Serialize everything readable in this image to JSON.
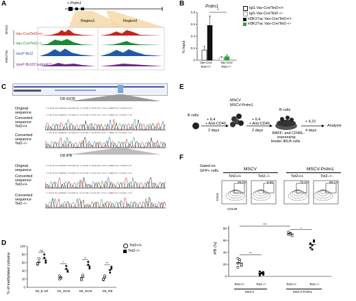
{
  "panels": {
    "A": "A",
    "B": "B",
    "C": "C",
    "D": "D",
    "E": "E",
    "F": "F"
  },
  "panelA": {
    "gene": "< Prdm1",
    "region1": "Region1",
    "region2": "Region2",
    "group1": "Bmi1C",
    "group2": "H3K27ac",
    "track_labels": [
      {
        "text": "Vav-Cre/Tet2+/+",
        "color": "#c8221c"
      },
      {
        "text": "Vav-Cre/Tet2−/−",
        "color": "#1c8a3a"
      },
      {
        "text": "VavP-Bcl2",
        "color": "#1f5aa6"
      },
      {
        "text": "VavP-Bcl2/CrebbpKO",
        "color": "#6b2a86"
      }
    ]
  },
  "panelB": {
    "title": "Prdm1",
    "ylabel": "% Input",
    "yticks": [
      "0.8",
      "0.6",
      "0.4",
      "0.2",
      "0"
    ],
    "sig": "*",
    "xlabels": [
      "Vav-Cre/",
      "Tet2+/+",
      "Vav-Cre/",
      "Tet2−/−"
    ],
    "legend": [
      "IgG Vav-Cre/Tet2+/+",
      "IgG Vav-Cre/Tet2−/−",
      "H3K27ac Vav-Cre/Tet2+/+",
      "H3K27ac Vav-Cre/Tet2−/−"
    ]
  },
  "chart_b": {
    "type": "bar",
    "title": "Prdm1",
    "ylabel": "% Input",
    "ylim": [
      0,
      0.8
    ],
    "categories": [
      "Vav-Cre/Tet2+/+",
      "Vav-Cre/Tet2−/−"
    ],
    "series": [
      {
        "name": "IgG Vav-Cre/Tet2+/+",
        "values": [
          0.17,
          null
        ],
        "color": "#ffffff"
      },
      {
        "name": "H3K27ac Vav-Cre/Tet2+/+",
        "values": [
          0.58,
          null
        ],
        "color": "#111111"
      },
      {
        "name": "IgG Vav-Cre/Tet2−/−",
        "values": [
          null,
          0.04
        ],
        "color": "#ffffff"
      },
      {
        "name": "H3K27ac Vav-Cre/Tet2−/−",
        "values": [
          null,
          0.06
        ],
        "color": "#2ea043"
      }
    ]
  },
  "panelC": {
    "d8igcb": "D8 iGCB",
    "d8ipb": "D8 iPB",
    "rows": [
      "Original sequence",
      "Converted sequence Tet2+/+",
      "Converted sequence Tet2−/−",
      "Original sequence",
      "Converted sequence Tet2+/+",
      "Converted sequence Tet2−/−"
    ],
    "seq_original": "TTCACATGCGGGGGCCACGACGCTCGCGGTCGCACACTCGCCCAAACGCTCGGGCCCG",
    "seq_converted": "TTTATATGTGGGGGTTATGATGTTCGTGGTTGTATATTCGTTTAAATGTTCGGGTTTG"
  },
  "panelD": {
    "ylabel": "% of methylated cytosine",
    "yticks": [
      "100",
      "80",
      "60",
      "40",
      "20",
      "0"
    ],
    "xlabels": [
      "D0_B cell",
      "D4_iGCB",
      "D8_iGCB",
      "D8_iPB"
    ],
    "sig": [
      "ns",
      "*",
      "**",
      "**"
    ],
    "legend": [
      "Tet2+/+",
      "Tet2−/−"
    ]
  },
  "chart_d": {
    "type": "scatter",
    "ylabel": "% of methylated cytosine",
    "ylim": [
      0,
      100
    ],
    "categories": [
      "D0_B cell",
      "D4_iGCB",
      "D8_iGCB",
      "D8_iPB"
    ],
    "series": [
      {
        "name": "Tet2+/+",
        "values": [
          [
            55,
            62,
            58,
            70
          ],
          [
            20,
            24,
            28,
            22
          ],
          [
            22,
            26,
            18,
            30
          ],
          [
            18,
            24,
            20,
            28
          ]
        ]
      },
      {
        "name": "Tet2−/−",
        "values": [
          [
            72,
            60,
            80,
            65
          ],
          [
            45,
            38,
            52,
            40
          ],
          [
            55,
            46,
            62,
            50
          ],
          [
            42,
            50,
            36,
            46
          ]
        ]
      }
    ]
  },
  "panelE": {
    "bcells": "B cells",
    "msc1": "MSCV",
    "msc2": "MSCV-Prdm1",
    "step1": [
      "+ IL4",
      "+ Anti-CD40"
    ],
    "step1d": "2 days",
    "step2": [
      "+ IL4",
      "+ Anti-CD40"
    ],
    "step2d": "2 days",
    "bcells2": "B cells",
    "feeder": [
      "BAFF- and CD40L-",
      "expressing",
      "feeder 40LB cells"
    ],
    "step3": "+ IL21",
    "step3d": "4 days",
    "analysis": "Analysis"
  },
  "panelF": {
    "gated": [
      "Gated on",
      "GFP+ cells"
    ],
    "groups": [
      "MSCV",
      "MSCV-Prdm1"
    ],
    "plots": [
      {
        "title": "Tet2+/+",
        "pct": "29.2%"
      },
      {
        "title": "Tet2−/−",
        "pct": "8.6%"
      },
      {
        "title": "Tet2+/+",
        "pct": "72.2%"
      },
      {
        "title": "Tet2−/−",
        "pct": "59.1%"
      }
    ],
    "yaxis": "CD19",
    "xaxis": "CD138",
    "ylabel": "iPB (%)",
    "yticks": [
      "80",
      "60",
      "40",
      "20",
      "0"
    ],
    "sig": [
      "**",
      "***",
      "*"
    ],
    "xlabels": [
      "Tet2+/+",
      "Tet2−/−",
      "Tet2+/+",
      "Tet2−/−"
    ],
    "groupx": [
      "MSCV",
      "MSCV-Prdm1"
    ]
  },
  "chart_f": {
    "type": "scatter",
    "ylabel": "iPB (%)",
    "ylim": [
      0,
      80
    ],
    "categories": [
      "MSCV Tet2+/+",
      "MSCV Tet2−/−",
      "MSCV-Prdm1 Tet2+/+",
      "MSCV-Prdm1 Tet2−/−"
    ],
    "values": [
      [
        22,
        28,
        18,
        15,
        25,
        20,
        30
      ],
      [
        4,
        6,
        3,
        8,
        5,
        7,
        2
      ],
      [
        70,
        72,
        68,
        74,
        71
      ],
      [
        48,
        52,
        60,
        55,
        45,
        58
      ]
    ],
    "means": [
      22,
      5,
      71,
      53
    ]
  },
  "colors": {
    "red": "#c8221c",
    "green": "#1c8a3a",
    "blue": "#1f5aa6",
    "purple": "#6b2a86",
    "lightgreen": "#2ea043"
  }
}
